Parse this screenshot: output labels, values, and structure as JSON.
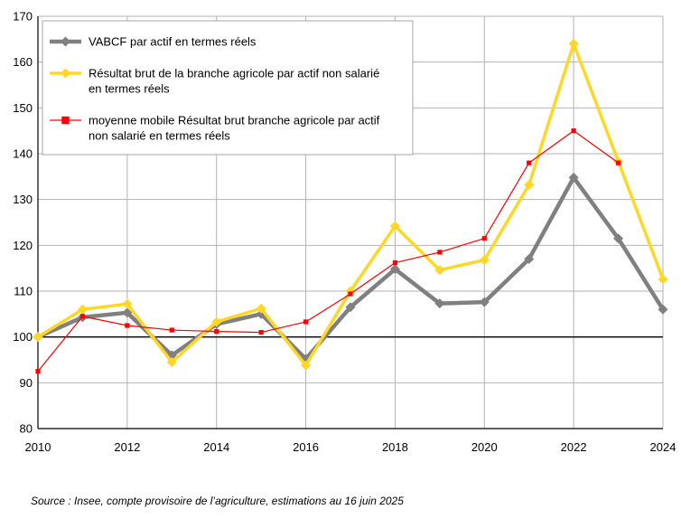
{
  "chart_data": {
    "type": "line",
    "x": [
      2010,
      2011,
      2012,
      2013,
      2014,
      2015,
      2016,
      2017,
      2018,
      2019,
      2020,
      2021,
      2022,
      2023,
      2024
    ],
    "xticks": [
      2010,
      2012,
      2014,
      2016,
      2018,
      2020,
      2022,
      2024
    ],
    "xlim": [
      2010,
      2024
    ],
    "ylim": [
      80,
      170
    ],
    "yticks": [
      80,
      90,
      100,
      110,
      120,
      130,
      140,
      150,
      160,
      170
    ],
    "reference_line": 100,
    "grid": true,
    "legend_position": "top-left",
    "series": [
      {
        "name": "VABCF par actif en termes réels",
        "name_lines": [
          "VABCF par actif en termes réels"
        ],
        "color": "#808080",
        "marker": "diamond",
        "values": [
          100,
          104.3,
          105.3,
          96,
          102.8,
          105,
          95.2,
          106.5,
          114.8,
          107.3,
          107.6,
          117,
          134.8,
          121.5,
          106
        ]
      },
      {
        "name": "Résultat brut de la branche agricole par actif non salarié en termes réels",
        "name_lines": [
          "Résultat brut de la branche agricole par actif non salarié",
          "en termes réels"
        ],
        "color": "#FFD726",
        "marker": "diamond",
        "values": [
          100,
          106,
          107.2,
          94.5,
          103.3,
          106.2,
          93.8,
          110,
          124.2,
          114.6,
          116.8,
          133.2,
          164,
          138.3,
          112.6
        ]
      },
      {
        "name": "moyenne mobile Résultat brut branche agricole par actif non salarié en termes réels",
        "name_lines": [
          "moyenne mobile Résultat brut branche agricole par actif",
          "non salarié en termes réels"
        ],
        "color": "#FF0000",
        "marker": "square",
        "values": [
          92.5,
          104.5,
          102.5,
          101.5,
          101.2,
          101,
          103.3,
          109.4,
          116.2,
          118.5,
          121.5,
          138,
          145,
          138,
          null
        ]
      }
    ]
  },
  "source": "Source : Insee, compte provisoire de l’agriculture, estimations au 16 juin 2025"
}
